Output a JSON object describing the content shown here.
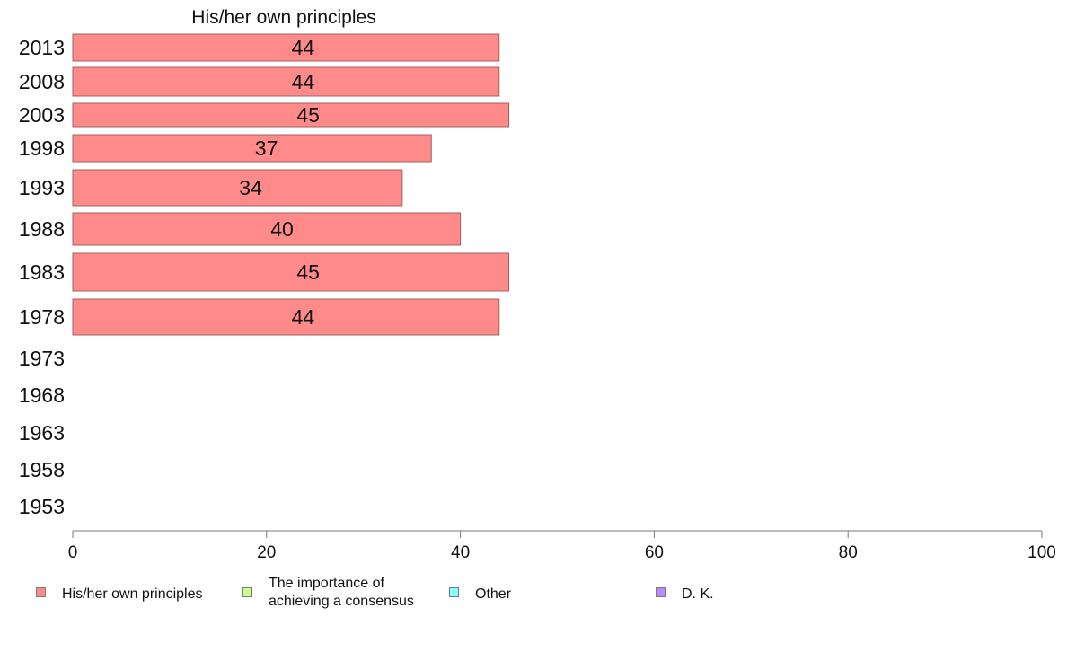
{
  "chart_data": {
    "type": "bar",
    "orientation": "horizontal",
    "title": "His/her own principles",
    "categories": [
      "2013",
      "2008",
      "2003",
      "1998",
      "1993",
      "1988",
      "1983",
      "1978",
      "1973",
      "1968",
      "1963",
      "1958",
      "1953"
    ],
    "series": [
      {
        "name": "His/her own principles",
        "values": [
          44,
          44,
          45,
          37,
          34,
          40,
          45,
          44,
          null,
          null,
          null,
          null,
          null
        ],
        "color": "#ff8a8a"
      }
    ],
    "xlim": [
      0,
      100
    ],
    "xticks": [
      "0",
      "20",
      "40",
      "60",
      "80",
      "100"
    ],
    "grid": false,
    "legend_position": "bottom",
    "legend": [
      {
        "label": "His/her own principles",
        "color": "#ff8a8a"
      },
      {
        "label": "The importance of\nachieving a consensus",
        "color": "#ccff88"
      },
      {
        "label": "Other",
        "color": "#88ffff"
      },
      {
        "label": "D. K.",
        "color": "#bb88ff"
      }
    ]
  }
}
